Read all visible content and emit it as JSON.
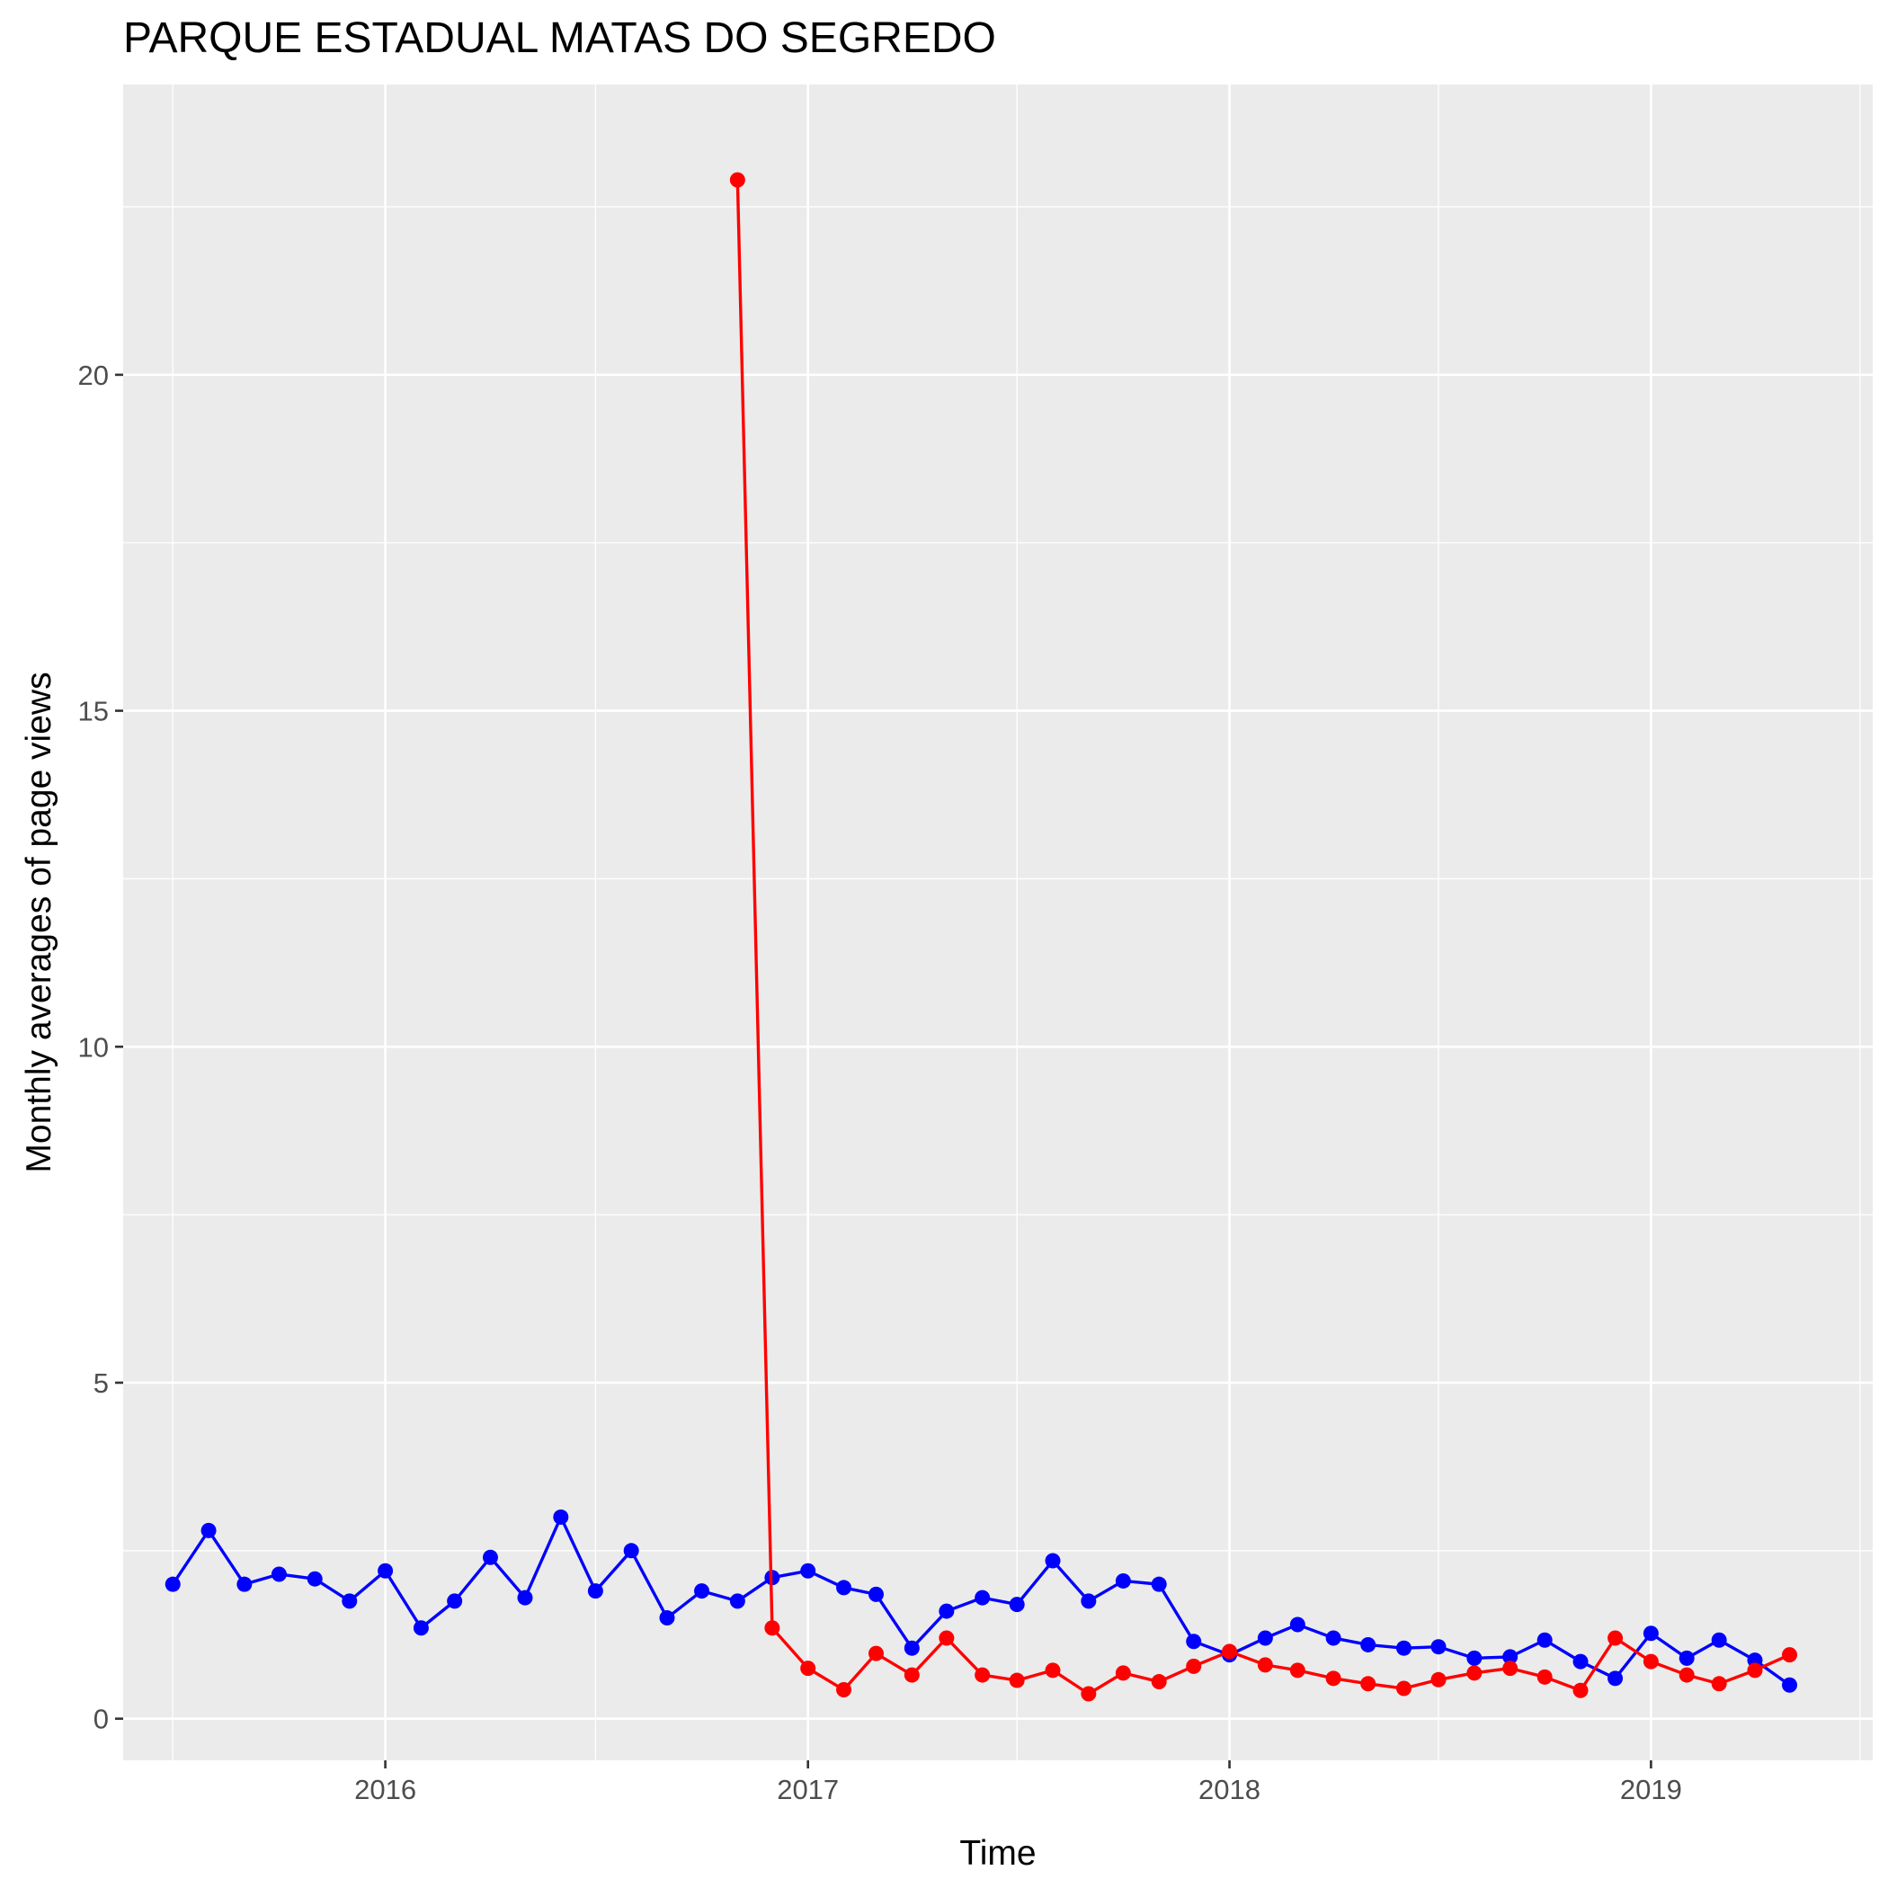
{
  "chart_data": {
    "type": "line",
    "title": "PARQUE ESTADUAL MATAS DO SEGREDO",
    "xlabel": "Time",
    "ylabel": "Monthly averages of page views",
    "x_ticks": [
      "2016",
      "2017",
      "2018",
      "2019"
    ],
    "y_ticks": [
      0,
      5,
      10,
      15,
      20
    ],
    "ylim": [
      -0.62,
      24.32
    ],
    "xlim": [
      "2015-05-19",
      "2019-07-12"
    ],
    "grid": true,
    "panel_background": "#ebebeb",
    "series": [
      {
        "color": "#0000ff",
        "x": [
          "2015-07-01",
          "2015-08-01",
          "2015-09-01",
          "2015-10-01",
          "2015-11-01",
          "2015-12-01",
          "2016-01-01",
          "2016-02-01",
          "2016-03-01",
          "2016-04-01",
          "2016-05-01",
          "2016-06-01",
          "2016-07-01",
          "2016-08-01",
          "2016-09-01",
          "2016-10-01",
          "2016-11-01",
          "2016-12-01",
          "2017-01-01",
          "2017-02-01",
          "2017-03-01",
          "2017-04-01",
          "2017-05-01",
          "2017-06-01",
          "2017-07-01",
          "2017-08-01",
          "2017-09-01",
          "2017-10-01",
          "2017-11-01",
          "2017-12-01",
          "2018-01-01",
          "2018-02-01",
          "2018-03-01",
          "2018-04-01",
          "2018-05-01",
          "2018-06-01",
          "2018-07-01",
          "2018-08-01",
          "2018-09-01",
          "2018-10-01",
          "2018-11-01",
          "2018-12-01",
          "2019-01-01",
          "2019-02-01",
          "2019-03-01",
          "2019-04-01",
          "2019-05-01"
        ],
        "values": [
          2.0,
          2.8,
          2.0,
          2.15,
          2.08,
          1.75,
          2.2,
          1.35,
          1.75,
          2.4,
          1.8,
          3.0,
          1.9,
          2.5,
          1.5,
          1.9,
          1.75,
          2.1,
          2.2,
          1.95,
          1.85,
          1.05,
          1.6,
          1.8,
          1.7,
          2.35,
          1.75,
          2.05,
          2.0,
          1.15,
          0.95,
          1.2,
          1.4,
          1.2,
          1.1,
          1.05,
          1.07,
          0.9,
          0.92,
          1.17,
          0.85,
          0.6,
          1.27,
          0.9,
          1.17,
          0.87,
          0.5
        ]
      },
      {
        "color": "#ff0000",
        "x": [
          "2016-11-01",
          "2016-12-01",
          "2017-01-01",
          "2017-02-01",
          "2017-03-01",
          "2017-04-01",
          "2017-05-01",
          "2017-06-01",
          "2017-07-01",
          "2017-08-01",
          "2017-09-01",
          "2017-10-01",
          "2017-11-01",
          "2017-12-01",
          "2018-01-01",
          "2018-02-01",
          "2018-03-01",
          "2018-04-01",
          "2018-05-01",
          "2018-06-01",
          "2018-07-01",
          "2018-08-01",
          "2018-09-01",
          "2018-10-01",
          "2018-11-01",
          "2018-12-01",
          "2019-01-01",
          "2019-02-01",
          "2019-03-01",
          "2019-04-01",
          "2019-05-01"
        ],
        "values": [
          22.9,
          1.35,
          0.75,
          0.43,
          0.97,
          0.65,
          1.2,
          0.65,
          0.57,
          0.72,
          0.37,
          0.68,
          0.55,
          0.78,
          1.0,
          0.8,
          0.72,
          0.6,
          0.52,
          0.45,
          0.58,
          0.68,
          0.75,
          0.62,
          0.42,
          1.2,
          0.85,
          0.65,
          0.52,
          0.72,
          0.95
        ]
      }
    ]
  }
}
